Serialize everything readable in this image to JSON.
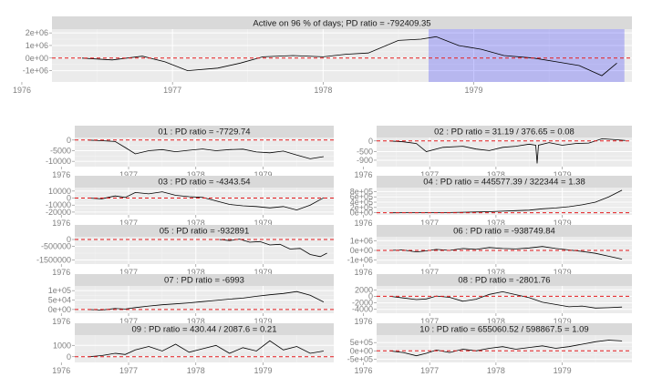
{
  "chart_data": [
    {
      "type": "line",
      "title": "Active on 96 % of days; PD ratio =  -792409.35",
      "x_ticks": [
        "1976",
        "1977",
        "1978",
        "1979"
      ],
      "x_range": [
        1976.2,
        1980.05
      ],
      "y_ticks": [
        "2e+06",
        "1e+06",
        "0e+00",
        "-1e+06"
      ],
      "y_tick_values": [
        2000000,
        1000000,
        0,
        -1000000
      ],
      "y_range": [
        -1900000,
        2300000
      ],
      "reference_line_y": 0,
      "highlight_x": [
        1978.7,
        1980.0
      ],
      "colors": {
        "line": "#000000",
        "reference": "#e41a1c",
        "highlight": "#0000ff"
      },
      "series": [
        {
          "x": [
            1976.4,
            1976.6,
            1976.8,
            1976.95,
            1977.1,
            1977.3,
            1977.45,
            1977.6,
            1977.8,
            1978.0,
            1978.15,
            1978.3,
            1978.5,
            1978.65,
            1978.75,
            1978.9,
            1979.05,
            1979.2,
            1979.4,
            1979.55,
            1979.7,
            1979.85,
            1979.95
          ],
          "y": [
            0,
            -150000,
            150000,
            -300000,
            -1000000,
            -800000,
            -400000,
            100000,
            200000,
            100000,
            300000,
            400000,
            1400000,
            1500000,
            1700000,
            1000000,
            700000,
            200000,
            0,
            -300000,
            -600000,
            -1400000,
            -400000
          ]
        }
      ]
    },
    {
      "type": "line",
      "title": "01 : PD ratio =  -7729.74",
      "x_ticks": [
        "1976",
        "1977",
        "1978",
        "1979"
      ],
      "x_range": [
        1976.2,
        1980.05
      ],
      "y_ticks": [
        "0",
        "-5000",
        "-10000"
      ],
      "y_tick_values": [
        0,
        -5000,
        -10000
      ],
      "y_range": [
        -12500,
        1200
      ],
      "reference_line_y": 0,
      "series": [
        {
          "x": [
            1976.4,
            1976.6,
            1976.8,
            1976.95,
            1977.1,
            1977.3,
            1977.5,
            1977.7,
            1977.9,
            1978.1,
            1978.3,
            1978.5,
            1978.7,
            1978.9,
            1979.1,
            1979.3,
            1979.5,
            1979.7,
            1979.9
          ],
          "y": [
            0,
            -300,
            -700,
            -3500,
            -6500,
            -5000,
            -4500,
            -5500,
            -4800,
            -4200,
            -5000,
            -4500,
            -4300,
            -5600,
            -6000,
            -5200,
            -7000,
            -8800,
            -7800
          ]
        }
      ]
    },
    {
      "type": "line",
      "title": "02 : PD ratio =  31.19 / 376.65 = 0.08",
      "x_ticks": [
        "1976",
        "1977",
        "1978",
        "1979"
      ],
      "x_range": [
        1976.2,
        1980.05
      ],
      "y_ticks": [
        "0",
        "-500",
        "-900"
      ],
      "y_tick_values": [
        0,
        -500,
        -900
      ],
      "y_range": [
        -1200,
        160
      ],
      "reference_line_y": 0,
      "series": [
        {
          "x": [
            1976.4,
            1976.6,
            1976.8,
            1976.95,
            1977.2,
            1977.5,
            1977.7,
            1977.9,
            1978.1,
            1978.3,
            1978.5,
            1978.6,
            1978.62,
            1978.64,
            1978.8,
            1979.0,
            1979.2,
            1979.4,
            1979.6,
            1979.8,
            1979.95
          ],
          "y": [
            0,
            -40,
            -120,
            -500,
            -300,
            -250,
            -380,
            -450,
            -300,
            -250,
            -150,
            -200,
            -1050,
            -200,
            -80,
            -200,
            -120,
            -100,
            100,
            60,
            20
          ]
        }
      ]
    },
    {
      "type": "line",
      "title": "03 : PD ratio =  -4343.54",
      "x_ticks": [
        "1976",
        "1977",
        "1978",
        "1979"
      ],
      "x_range": [
        1976.2,
        1980.05
      ],
      "y_ticks": [
        "10000",
        "0",
        "-10000",
        "-20000"
      ],
      "y_tick_values": [
        10000,
        0,
        -10000,
        -20000
      ],
      "y_range": [
        -24000,
        15000
      ],
      "reference_line_y": 0,
      "series": [
        {
          "x": [
            1976.4,
            1976.6,
            1976.8,
            1976.95,
            1977.1,
            1977.3,
            1977.5,
            1977.7,
            1977.9,
            1978.1,
            1978.3,
            1978.5,
            1978.7,
            1978.9,
            1979.1,
            1979.3,
            1979.5,
            1979.7,
            1979.9
          ],
          "y": [
            0,
            -1000,
            3000,
            1000,
            8000,
            6000,
            9000,
            4000,
            2000,
            1000,
            -4000,
            -9000,
            -11000,
            -12000,
            -14000,
            -12000,
            -17000,
            -10000,
            500
          ]
        }
      ]
    },
    {
      "type": "line",
      "title": "04 : PD ratio =  445577.39 / 322344 = 1.38",
      "x_ticks": [
        "1976",
        "1977",
        "1978",
        "1979"
      ],
      "x_range": [
        1976.2,
        1980.05
      ],
      "y_ticks": [
        "8e+05",
        "6e+05",
        "4e+05",
        "2e+05",
        "0e+00"
      ],
      "y_tick_values": [
        800000,
        600000,
        400000,
        200000,
        0
      ],
      "y_range": [
        -80000,
        950000
      ],
      "reference_line_y": 0,
      "series": [
        {
          "x": [
            1976.4,
            1976.6,
            1976.8,
            1976.95,
            1977.1,
            1977.3,
            1977.5,
            1977.7,
            1977.9,
            1978.1,
            1978.3,
            1978.5,
            1978.7,
            1978.9,
            1979.1,
            1979.3,
            1979.5,
            1979.7,
            1979.9
          ],
          "y": [
            0,
            1000,
            3000,
            2000,
            5000,
            10000,
            20000,
            30000,
            40000,
            60000,
            80000,
            100000,
            150000,
            180000,
            230000,
            300000,
            400000,
            600000,
            850000
          ]
        }
      ]
    },
    {
      "type": "line",
      "title": "05 : PD ratio =  -932891",
      "x_ticks": [
        "1976",
        "1977",
        "1978",
        "1979"
      ],
      "x_range": [
        1976.2,
        1980.05
      ],
      "y_ticks": [
        "0",
        "-500000",
        "-1500000"
      ],
      "y_tick_values": [
        0,
        -500000,
        -1500000
      ],
      "y_range": [
        -1800000,
        200000
      ],
      "reference_line_y": 0,
      "series": [
        {
          "x": [
            1978.35,
            1978.5,
            1978.65,
            1978.8,
            1978.95,
            1979.1,
            1979.25,
            1979.4,
            1979.55,
            1979.7,
            1979.85,
            1979.95
          ],
          "y": [
            0,
            -80000,
            30000,
            -200000,
            -150000,
            -400000,
            -350000,
            -700000,
            -650000,
            -1100000,
            -1250000,
            -1000000
          ]
        }
      ]
    },
    {
      "type": "line",
      "title": "06 : PD ratio =  -938749.84",
      "x_ticks": [
        "1976",
        "1977",
        "1978",
        "1979"
      ],
      "x_range": [
        1976.2,
        1980.05
      ],
      "y_ticks": [
        "1e+06",
        "0e+00",
        "-1e+06"
      ],
      "y_tick_values": [
        1000000,
        0,
        -1000000
      ],
      "y_range": [
        -1400000,
        1400000
      ],
      "reference_line_y": 0,
      "series": [
        {
          "x": [
            1976.4,
            1976.6,
            1976.8,
            1976.95,
            1977.1,
            1977.3,
            1977.5,
            1977.7,
            1977.9,
            1978.1,
            1978.3,
            1978.5,
            1978.7,
            1978.9,
            1979.1,
            1979.3,
            1979.5,
            1979.7,
            1979.9
          ],
          "y": [
            0,
            50000,
            -150000,
            -50000,
            100000,
            0,
            200000,
            100000,
            300000,
            200000,
            150000,
            250000,
            400000,
            200000,
            50000,
            -100000,
            -300000,
            -600000,
            -900000
          ]
        }
      ]
    },
    {
      "type": "line",
      "title": "07 : PD ratio =  -6993",
      "x_ticks": [
        "1976",
        "1977",
        "1978",
        "1979"
      ],
      "x_range": [
        1976.2,
        1980.05
      ],
      "y_ticks": [
        "1e+05",
        "5e+04",
        "0e+00"
      ],
      "y_tick_values": [
        100000,
        50000,
        0
      ],
      "y_range": [
        -20000,
        125000
      ],
      "reference_line_y": 0,
      "series": [
        {
          "x": [
            1976.4,
            1976.6,
            1976.8,
            1976.95,
            1977.1,
            1977.3,
            1977.5,
            1977.7,
            1977.9,
            1978.1,
            1978.3,
            1978.5,
            1978.7,
            1978.9,
            1979.1,
            1979.3,
            1979.5,
            1979.7,
            1979.9
          ],
          "y": [
            0,
            -3000,
            5000,
            2000,
            10000,
            18000,
            25000,
            30000,
            35000,
            42000,
            48000,
            55000,
            60000,
            70000,
            78000,
            85000,
            95000,
            75000,
            40000
          ]
        }
      ]
    },
    {
      "type": "line",
      "title": "08 : PD ratio =  -2801.76",
      "x_ticks": [
        "1976",
        "1977",
        "1978",
        "1979"
      ],
      "x_range": [
        1976.2,
        1980.05
      ],
      "y_ticks": [
        "2000",
        "0",
        "-2000",
        "-4000"
      ],
      "y_tick_values": [
        2000,
        0,
        -2000,
        -4000
      ],
      "y_range": [
        -5200,
        3200
      ],
      "reference_line_y": 0,
      "series": [
        {
          "x": [
            1976.4,
            1976.6,
            1976.8,
            1976.95,
            1977.1,
            1977.3,
            1977.5,
            1977.7,
            1977.9,
            1978.1,
            1978.3,
            1978.5,
            1978.7,
            1978.9,
            1979.1,
            1979.3,
            1979.5,
            1979.7,
            1979.9
          ],
          "y": [
            0,
            -500,
            -1000,
            -800,
            100,
            -300,
            -1500,
            -900,
            600,
            1400,
            500,
            -400,
            -1800,
            -2500,
            -3200,
            -3000,
            -3600,
            -3500,
            -3300
          ]
        }
      ]
    },
    {
      "type": "line",
      "title": "09 : PD ratio =  430.44 / 2087.6 = 0.21",
      "x_ticks": [
        "1976",
        "1977",
        "1978",
        "1979"
      ],
      "x_range": [
        1976.2,
        1980.05
      ],
      "y_ticks": [
        "1000",
        "0"
      ],
      "y_tick_values": [
        1000,
        0
      ],
      "y_range": [
        -500,
        1900
      ],
      "reference_line_y": 0,
      "series": [
        {
          "x": [
            1976.4,
            1976.6,
            1976.8,
            1976.95,
            1977.1,
            1977.3,
            1977.5,
            1977.7,
            1977.9,
            1978.1,
            1978.3,
            1978.5,
            1978.7,
            1978.9,
            1979.1,
            1979.3,
            1979.5,
            1979.7,
            1979.9
          ],
          "y": [
            0,
            100,
            300,
            200,
            600,
            900,
            500,
            1100,
            400,
            700,
            1000,
            300,
            800,
            500,
            1400,
            600,
            900,
            300,
            500
          ]
        }
      ]
    },
    {
      "type": "line",
      "title": "10 : PD ratio =  655060.52 / 598867.5 = 1.09",
      "x_ticks": [
        "1976",
        "1977",
        "1978",
        "1979"
      ],
      "x_range": [
        1976.2,
        1980.05
      ],
      "y_ticks": [
        "5e+05",
        "0e+00",
        "-5e+05"
      ],
      "y_tick_values": [
        500000,
        0,
        -500000
      ],
      "y_range": [
        -700000,
        950000
      ],
      "reference_line_y": 0,
      "series": [
        {
          "x": [
            1976.4,
            1976.6,
            1976.8,
            1976.95,
            1977.1,
            1977.3,
            1977.5,
            1977.7,
            1977.9,
            1978.1,
            1978.3,
            1978.5,
            1978.7,
            1978.9,
            1979.1,
            1979.3,
            1979.5,
            1979.7,
            1979.9
          ],
          "y": [
            0,
            -100000,
            -300000,
            -150000,
            50000,
            -100000,
            100000,
            0,
            150000,
            250000,
            100000,
            200000,
            300000,
            150000,
            250000,
            400000,
            550000,
            650000,
            600000
          ]
        }
      ]
    }
  ]
}
